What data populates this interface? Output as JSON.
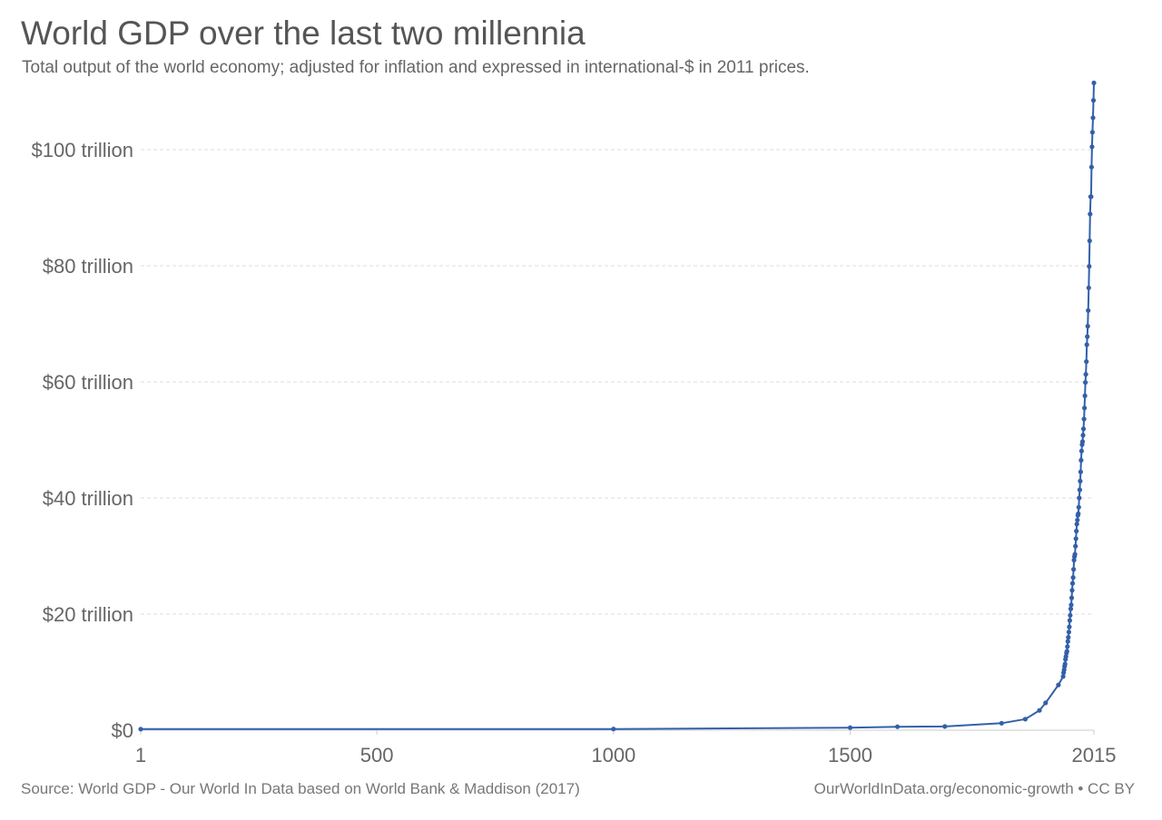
{
  "header": {
    "title": "World GDP over the last two millennia",
    "subtitle": "Total output of the world economy; adjusted for inflation and expressed in international-$ in 2011 prices."
  },
  "footer": {
    "source": "Source: World GDP - Our World In Data based on World Bank & Maddison (2017)",
    "credit": "OurWorldInData.org/economic-growth • CC BY"
  },
  "colors": {
    "line": "#3360a9",
    "grid": "#dddddd",
    "axis": "#cccccc"
  },
  "chart_data": {
    "type": "line",
    "title": "World GDP over the last two millennia",
    "subtitle": "Total output of the world economy; adjusted for inflation and expressed in international-$ in 2011 prices.",
    "xlabel": "",
    "ylabel": "",
    "xlim": [
      1,
      2015
    ],
    "ylim": [
      0,
      105
    ],
    "y_unit": "trillion international-$ (2011 prices)",
    "x_ticks": [
      {
        "value": 1,
        "label": "1"
      },
      {
        "value": 500,
        "label": "500"
      },
      {
        "value": 1000,
        "label": "1000"
      },
      {
        "value": 1500,
        "label": "1500"
      },
      {
        "value": 2015,
        "label": "2015"
      }
    ],
    "y_ticks": [
      {
        "value": 0,
        "label": "$0"
      },
      {
        "value": 20,
        "label": "$20 trillion"
      },
      {
        "value": 40,
        "label": "$40 trillion"
      },
      {
        "value": 60,
        "label": "$60 trillion"
      },
      {
        "value": 80,
        "label": "$80 trillion"
      },
      {
        "value": 100,
        "label": "$100 trillion"
      }
    ],
    "grid": true,
    "series": [
      {
        "x": [
          1,
          1000,
          1500,
          1600,
          1700,
          1820,
          1870,
          1900,
          1913,
          1940,
          1950,
          1951,
          1952,
          1953,
          1954,
          1955,
          1956,
          1957,
          1958,
          1959,
          1960,
          1961,
          1962,
          1963,
          1964,
          1965,
          1966,
          1967,
          1968,
          1969,
          1970,
          1971,
          1972,
          1973,
          1974,
          1975,
          1976,
          1977,
          1978,
          1979,
          1980,
          1981,
          1982,
          1983,
          1984,
          1985,
          1986,
          1987,
          1988,
          1989,
          1990,
          1991,
          1992,
          1993,
          1994,
          1995,
          1996,
          1997,
          1998,
          1999,
          2000,
          2001,
          2002,
          2003,
          2004,
          2005,
          2006,
          2007,
          2008,
          2009,
          2010,
          2011,
          2012,
          2013,
          2014,
          2015
        ],
        "y": [
          0.18,
          0.21,
          0.43,
          0.6,
          0.64,
          1.2,
          1.9,
          3.4,
          4.7,
          7.8,
          9.25,
          9.9,
          10.4,
          11.0,
          11.4,
          12.2,
          12.7,
          13.3,
          13.6,
          14.4,
          15.3,
          16.0,
          16.9,
          17.8,
          18.9,
          19.8,
          20.9,
          21.6,
          22.8,
          24.1,
          25.3,
          26.3,
          27.7,
          29.3,
          29.9,
          30.3,
          31.7,
          33.0,
          34.3,
          35.5,
          36.2,
          37.0,
          37.3,
          38.4,
          40.0,
          41.4,
          42.9,
          44.5,
          46.5,
          48.1,
          49.2,
          49.7,
          50.8,
          51.9,
          53.6,
          55.5,
          57.6,
          59.9,
          61.3,
          63.5,
          66.4,
          67.8,
          69.6,
          72.3,
          76.2,
          79.9,
          84.3,
          88.9,
          91.9,
          91.9,
          97.0,
          100.5,
          103.0,
          105.5,
          108.5,
          111.5
        ]
      }
    ]
  }
}
